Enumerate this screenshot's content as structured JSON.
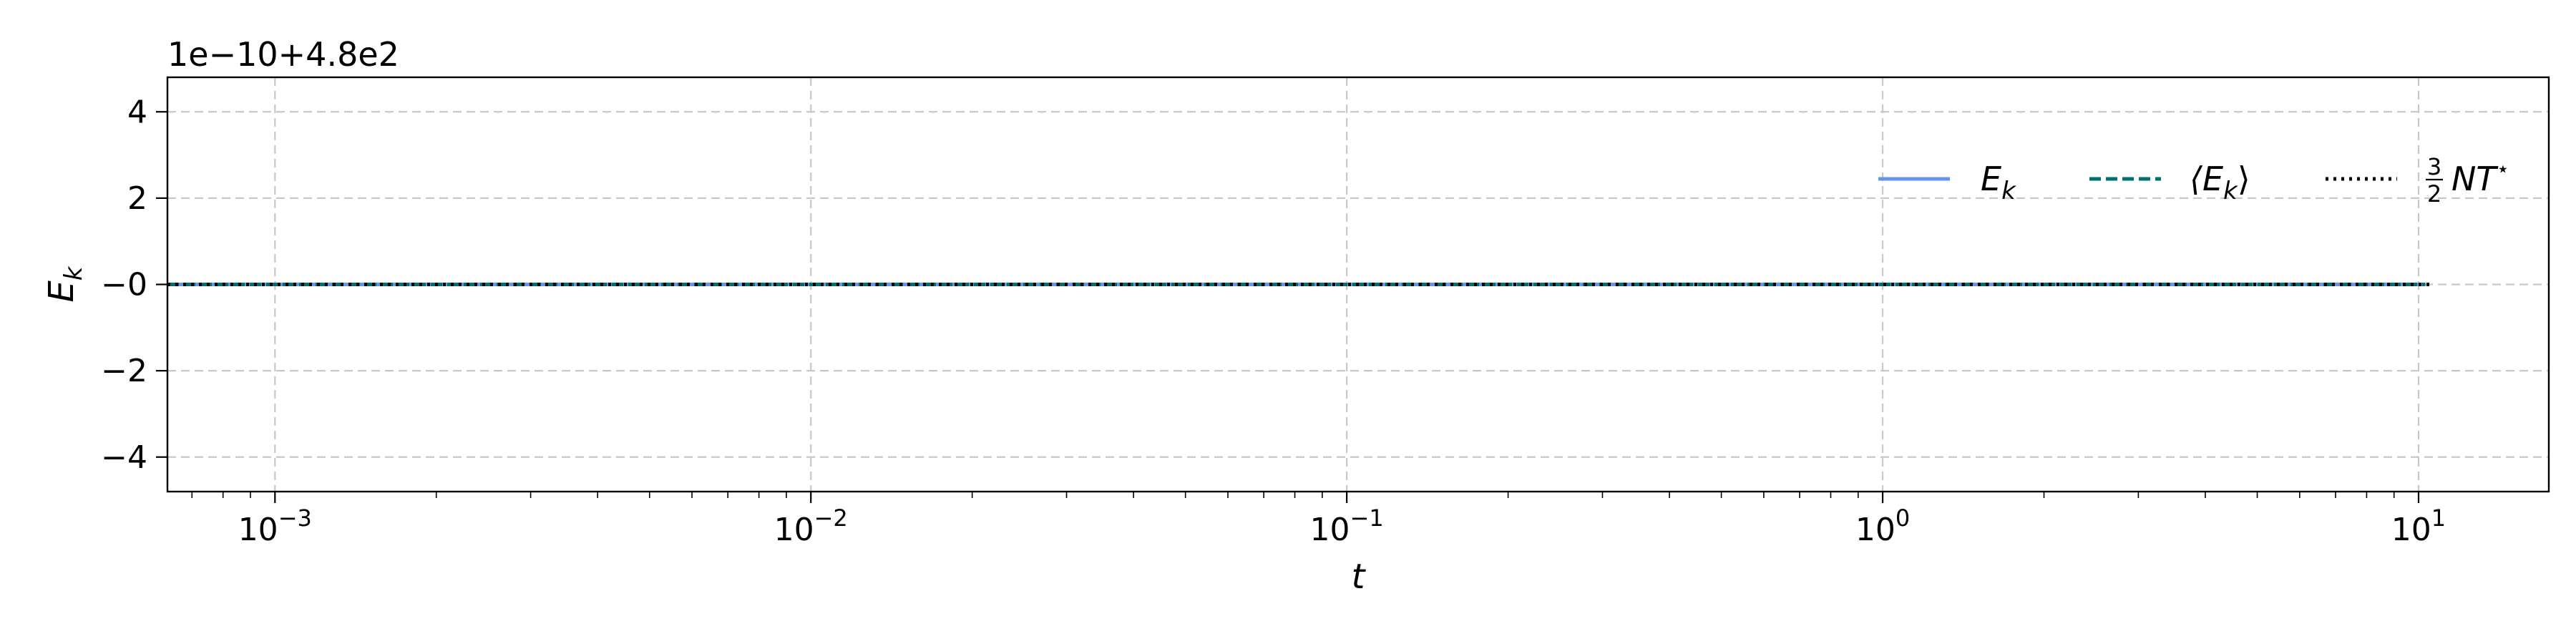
{
  "chart_data": {
    "type": "line",
    "title": "",
    "xlabel": "t",
    "ylabel_base": "E",
    "ylabel_sub": "k",
    "x_scale": "log",
    "xlim": [
      0.00063,
      17.5
    ],
    "ylim": [
      -4.8,
      4.8
    ],
    "y_offset_text": "1e−10+4.8e2",
    "grid": true,
    "x_ticks": [
      {
        "value": 0.001,
        "base": "10",
        "exp": "−3"
      },
      {
        "value": 0.01,
        "base": "10",
        "exp": "−2"
      },
      {
        "value": 0.1,
        "base": "10",
        "exp": "−1"
      },
      {
        "value": 1,
        "base": "10",
        "exp": "0"
      },
      {
        "value": 10,
        "base": "10",
        "exp": "1"
      }
    ],
    "y_ticks": [
      {
        "value": 4,
        "label": "4"
      },
      {
        "value": 2,
        "label": "2"
      },
      {
        "value": 0,
        "label": "−0"
      },
      {
        "value": -2,
        "label": "−2"
      },
      {
        "value": -4,
        "label": "−4"
      }
    ],
    "legend_placement": "top-right",
    "series": [
      {
        "name": "E",
        "name_sub": "k",
        "legend_style": "plain",
        "color": "#6495ed",
        "dash": "solid",
        "x": [
          0.00063,
          10.3
        ],
        "y": [
          0,
          0
        ]
      },
      {
        "name": "⟨E",
        "name_sub": "k",
        "name_suffix": "⟩",
        "legend_style": "bracket",
        "color": "#007070",
        "dash": "dashed",
        "x": [
          0.00063,
          10.3
        ],
        "y": [
          0,
          0
        ]
      },
      {
        "name": "NT",
        "name_sup": "⋆",
        "frac_num": "3",
        "frac_den": "2",
        "legend_style": "frac",
        "color": "#000000",
        "dash": "dotted",
        "x": [
          0.00063,
          10.6
        ],
        "y": [
          0,
          0
        ]
      }
    ]
  }
}
